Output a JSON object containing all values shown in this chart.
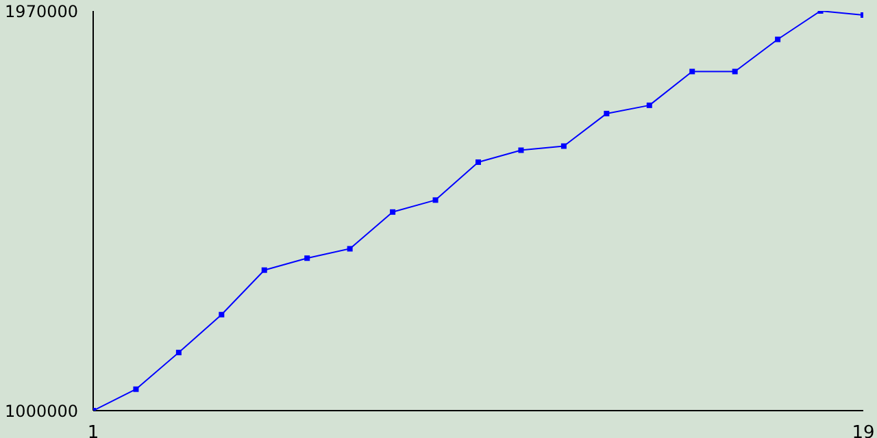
{
  "chart_data": {
    "type": "line",
    "x": [
      1,
      2,
      3,
      4,
      5,
      6,
      7,
      8,
      9,
      10,
      11,
      12,
      13,
      14,
      15,
      16,
      17,
      18,
      19
    ],
    "series": [
      {
        "color": "#0000ff",
        "values": [
          1000000,
          1052000,
          1141000,
          1233000,
          1341000,
          1370000,
          1393000,
          1482000,
          1511000,
          1603000,
          1632000,
          1642000,
          1721000,
          1741000,
          1823000,
          1823000,
          1901000,
          1970000,
          1960000
        ]
      }
    ],
    "xlim": [
      1,
      19
    ],
    "xticks": [
      1,
      19
    ],
    "ylim": [
      1000000,
      1970000
    ],
    "yticks": [
      1000000,
      1970000
    ],
    "marker": "square",
    "grid": false
  }
}
